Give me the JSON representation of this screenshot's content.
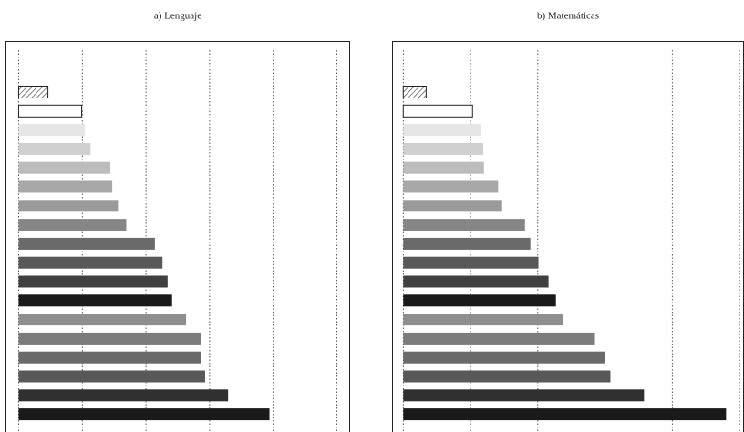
{
  "chart_data": [
    {
      "type": "bar",
      "orientation": "horizontal",
      "title": "a) Lenguaje",
      "categories": [
        null,
        null,
        null,
        null,
        null,
        null,
        null,
        null,
        null,
        null,
        null,
        null,
        null,
        null,
        null,
        null,
        null,
        null
      ],
      "values": [
        4.6,
        9.9,
        10.4,
        11.3,
        14.4,
        14.7,
        15.6,
        16.9,
        21.4,
        22.6,
        23.4,
        24.1,
        26.3,
        28.7,
        28.7,
        29.3,
        32.9,
        39.4
      ],
      "colors": [
        "hatch",
        "#ffffff",
        "#e6e6e6",
        "#d0d0d0",
        "#bcbcbc",
        "#a8a8a8",
        "#9a9a9a",
        "#868686",
        "#6a6a6a",
        "#585858",
        "#404040",
        "#1a1a1a",
        "#8e8e8e",
        "#7c7c7c",
        "#6a6a6a",
        "#585858",
        "#303030",
        "#1a1a1a"
      ],
      "xlim": [
        -2,
        52
      ],
      "xticks": [
        0,
        10,
        20,
        30,
        40,
        50
      ],
      "grid": true
    },
    {
      "type": "bar",
      "orientation": "horizontal",
      "title": "b) Matemáticas",
      "categories": [
        null,
        null,
        null,
        null,
        null,
        null,
        null,
        null,
        null,
        null,
        null,
        null,
        null,
        null,
        null,
        null,
        null,
        null
      ],
      "values": [
        3.4,
        10.3,
        11.5,
        11.9,
        12.0,
        14.1,
        14.7,
        18.1,
        18.9,
        20.1,
        21.6,
        22.7,
        23.8,
        28.5,
        30.0,
        30.8,
        35.8,
        48.0
      ],
      "colors": [
        "hatch",
        "#ffffff",
        "#e6e6e6",
        "#d0d0d0",
        "#bcbcbc",
        "#a8a8a8",
        "#9a9a9a",
        "#868686",
        "#6a6a6a",
        "#585858",
        "#404040",
        "#1a1a1a",
        "#8e8e8e",
        "#7c7c7c",
        "#6a6a6a",
        "#585858",
        "#303030",
        "#1a1a1a"
      ],
      "xlim": [
        -1.6,
        50.6
      ],
      "xticks": [
        0,
        10,
        20,
        30,
        40,
        50
      ],
      "grid": true
    }
  ]
}
